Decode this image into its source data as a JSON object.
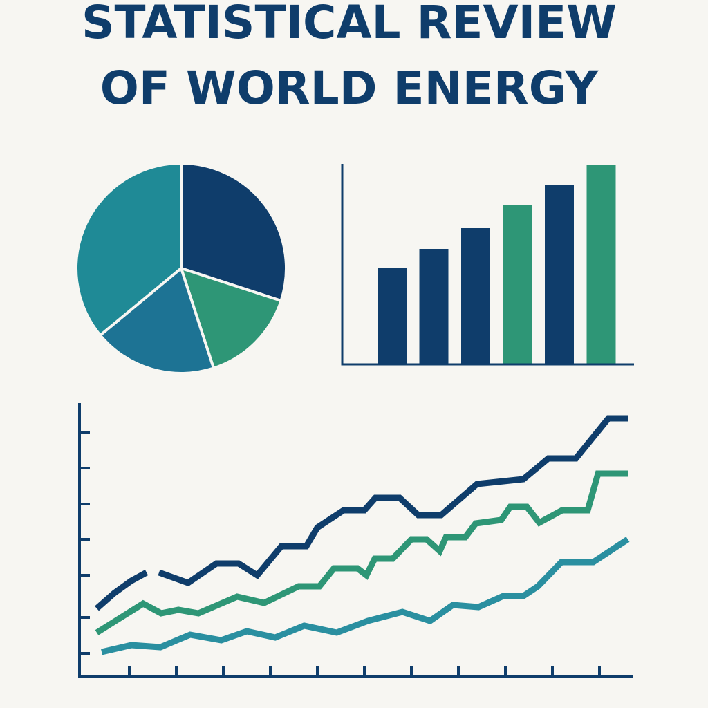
{
  "title": [
    "STATISTICAL REVIEW",
    "OF WORLD ENERGY"
  ],
  "chart_data": [
    {
      "type": "pie",
      "values": [
        30,
        15,
        19,
        36
      ],
      "colors": [
        "#0f3d6b",
        "#2e9676",
        "#1d7394",
        "#1f8a96"
      ]
    },
    {
      "type": "bar",
      "categories": [
        null,
        null,
        null,
        null,
        null,
        null
      ],
      "values": [
        139,
        167,
        197,
        231,
        260,
        288
      ],
      "colors": [
        "#0f3d6b",
        "#0f3d6b",
        "#0f3d6b",
        "#2e9676",
        "#0f3d6b",
        "#2e9676"
      ],
      "ylim": [
        0,
        290
      ]
    },
    {
      "type": "line",
      "xlim": [
        0,
        800
      ],
      "ylim": [
        0,
        395
      ],
      "xticks": [
        72,
        140,
        208,
        276,
        344,
        412,
        480,
        548,
        616,
        684,
        752
      ],
      "yticks": [
        33,
        85,
        146,
        198,
        249,
        301,
        353
      ],
      "series": [
        {
          "color": "#0f3d6b",
          "x": [
            25,
            50,
            75,
            97,
            106,
            115,
            157,
            198,
            230,
            257,
            292,
            328,
            344,
            382,
            412,
            428,
            463,
            490,
            523,
            575,
            642,
            678,
            718,
            765,
            793
          ],
          "values": [
            98,
            120,
            138,
            150,
            null,
            150,
            135,
            163,
            163,
            146,
            188,
            188,
            215,
            240,
            240,
            258,
            258,
            233,
            233,
            278,
            285,
            315,
            315,
            373,
            373
          ]
        },
        {
          "color": "#2e9676",
          "x": [
            25,
            60,
            92,
            118,
            143,
            172,
            228,
            267,
            317,
            347,
            368,
            402,
            415,
            427,
            453,
            480,
            502,
            521,
            530,
            558,
            573,
            610,
            623,
            647,
            665,
            698,
            735,
            750,
            793
          ],
          "values": [
            63,
            85,
            105,
            91,
            96,
            91,
            115,
            106,
            130,
            130,
            156,
            156,
            146,
            170,
            170,
            198,
            198,
            181,
            201,
            201,
            221,
            226,
            245,
            245,
            222,
            240,
            240,
            293,
            293
          ]
        },
        {
          "color": "#2a8fa0",
          "x": [
            32,
            75,
            117,
            160,
            205,
            242,
            283,
            325,
            372,
            417,
            467,
            507,
            540,
            577,
            613,
            642,
            663,
            697,
            743,
            793
          ],
          "values": [
            35,
            45,
            42,
            60,
            52,
            65,
            56,
            73,
            63,
            80,
            93,
            80,
            103,
            100,
            116,
            116,
            130,
            165,
            165,
            198
          ]
        }
      ]
    }
  ]
}
